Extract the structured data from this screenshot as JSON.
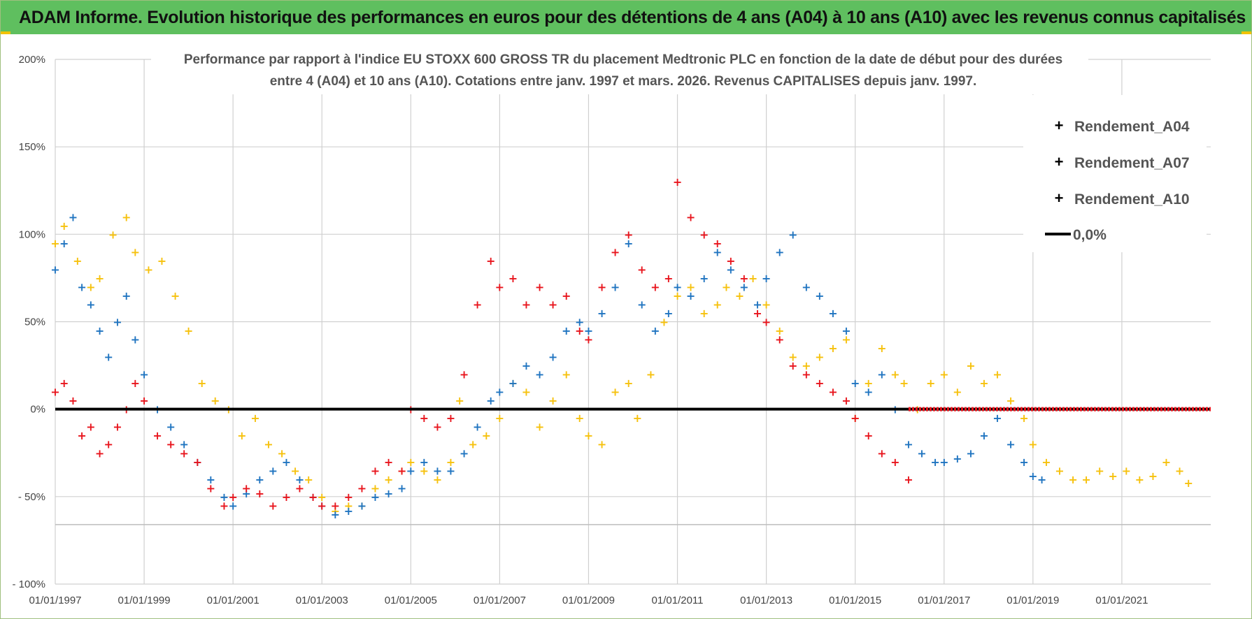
{
  "banner": {
    "title": "ADAM Informe. Evolution historique des performances en euros pour des détentions de 4 ans (A04) à 10 ans (A10) avec les revenus connus capitalisés"
  },
  "colors": {
    "a04": "#f6c10d",
    "a07": "#1f74c0",
    "a10": "#e8141c",
    "zero": "#000000",
    "grid": "#d0d0d0",
    "banner": "#5fbf5f"
  },
  "chart_data": {
    "type": "scatter",
    "title_lines": [
      "Performance par rapport à l'indice EU STOXX 600 GROSS TR  du placement Medtronic PLC en fonction de la date de début pour des durées",
      "entre 4 (A04) et 10 ans (A10). Cotations entre janv. 1997 et mars. 2026. Revenus CAPITALISES depuis janv. 1997."
    ],
    "xlabel": "",
    "ylabel": "",
    "xlim": [
      1997.0,
      2023.0
    ],
    "ylim": [
      -100,
      200
    ],
    "y_ticks": [
      200,
      150,
      100,
      50,
      0,
      -50,
      -100
    ],
    "y_tick_labels": [
      "200%",
      "150%",
      "100%",
      "50%",
      "0%",
      "- 50%",
      "- 100%"
    ],
    "x_ticks": [
      1997,
      1999,
      2001,
      2003,
      2005,
      2007,
      2009,
      2011,
      2013,
      2015,
      2017,
      2019,
      2021
    ],
    "x_tick_labels": [
      "01/01/1997",
      "01/01/1999",
      "01/01/2001",
      "01/01/2003",
      "01/01/2005",
      "01/01/2007",
      "01/01/2009",
      "01/01/2011",
      "01/01/2013",
      "01/01/2015",
      "01/01/2017",
      "01/01/2019",
      "01/01/2021"
    ],
    "legend_position": "top-right",
    "legend": [
      "Rendement_A04",
      "Rendement_A07",
      "Rendement_A10",
      "0,0%"
    ],
    "series": [
      {
        "name": "Rendement_A04",
        "color_key": "a04",
        "x": [
          1997.0,
          1997.2,
          1997.5,
          1997.8,
          1998.0,
          1998.3,
          1998.6,
          1998.8,
          1999.1,
          1999.4,
          1999.7,
          2000.0,
          2000.3,
          2000.6,
          2000.9,
          2001.2,
          2001.5,
          2001.8,
          2002.1,
          2002.4,
          2002.7,
          2003.0,
          2003.3,
          2003.6,
          2003.9,
          2004.2,
          2004.5,
          2004.8,
          2005.0,
          2005.3,
          2005.6,
          2005.9,
          2006.1,
          2006.4,
          2006.7,
          2007.0,
          2007.3,
          2007.6,
          2007.9,
          2008.2,
          2008.5,
          2008.8,
          2009.0,
          2009.3,
          2009.6,
          2009.9,
          2010.1,
          2010.4,
          2010.7,
          2011.0,
          2011.3,
          2011.6,
          2011.9,
          2012.1,
          2012.4,
          2012.7,
          2013.0,
          2013.3,
          2013.6,
          2013.9,
          2014.2,
          2014.5,
          2014.8,
          2015.0,
          2015.3,
          2015.6,
          2015.9,
          2016.1,
          2016.4,
          2016.7,
          2017.0,
          2017.3,
          2017.6,
          2017.9,
          2018.2,
          2018.5,
          2018.8,
          2019.0,
          2019.3,
          2019.6,
          2019.9,
          2020.2,
          2020.5,
          2020.8,
          2021.1,
          2021.4,
          2021.7,
          2022.0,
          2022.3,
          2022.5
        ],
        "y": [
          95,
          105,
          85,
          70,
          75,
          100,
          110,
          90,
          80,
          85,
          65,
          45,
          15,
          5,
          0,
          -15,
          -5,
          -20,
          -25,
          -35,
          -40,
          -50,
          -58,
          -55,
          -55,
          -45,
          -40,
          -35,
          -30,
          -35,
          -40,
          -30,
          5,
          -20,
          -15,
          -5,
          15,
          10,
          -10,
          5,
          20,
          -5,
          -15,
          -20,
          10,
          15,
          -5,
          20,
          50,
          65,
          70,
          55,
          60,
          70,
          65,
          75,
          60,
          45,
          30,
          25,
          30,
          35,
          40,
          -5,
          15,
          35,
          20,
          15,
          0,
          15,
          20,
          10,
          25,
          15,
          20,
          5,
          -5,
          -20,
          -30,
          -35,
          -40,
          -40,
          -35,
          -38,
          -35,
          -40,
          -38,
          -30,
          -35,
          -42
        ]
      },
      {
        "name": "Rendement_A07",
        "color_key": "a07",
        "x": [
          1997.0,
          1997.2,
          1997.4,
          1997.6,
          1997.8,
          1998.0,
          1998.2,
          1998.4,
          1998.6,
          1998.8,
          1999.0,
          1999.3,
          1999.6,
          1999.9,
          2000.2,
          2000.5,
          2000.8,
          2001.0,
          2001.3,
          2001.6,
          2001.9,
          2002.2,
          2002.5,
          2002.8,
          2003.0,
          2003.3,
          2003.6,
          2003.9,
          2004.2,
          2004.5,
          2004.8,
          2005.0,
          2005.3,
          2005.6,
          2005.9,
          2006.2,
          2006.5,
          2006.8,
          2007.0,
          2007.3,
          2007.6,
          2007.9,
          2008.2,
          2008.5,
          2008.8,
          2009.0,
          2009.3,
          2009.6,
          2009.9,
          2010.2,
          2010.5,
          2010.8,
          2011.0,
          2011.3,
          2011.6,
          2011.9,
          2012.2,
          2012.5,
          2012.8,
          2013.0,
          2013.3,
          2013.6,
          2013.9,
          2014.2,
          2014.5,
          2014.8,
          2015.0,
          2015.3,
          2015.6,
          2015.9,
          2016.2,
          2016.5,
          2016.8,
          2017.0,
          2017.3,
          2017.6,
          2017.9,
          2018.2,
          2018.5,
          2018.8,
          2019.0,
          2019.2
        ],
        "y": [
          80,
          95,
          110,
          70,
          60,
          45,
          30,
          50,
          65,
          40,
          20,
          0,
          -10,
          -20,
          -30,
          -40,
          -50,
          -55,
          -48,
          -40,
          -35,
          -30,
          -40,
          -50,
          -55,
          -60,
          -58,
          -55,
          -50,
          -48,
          -45,
          -35,
          -30,
          -35,
          -35,
          -25,
          -10,
          5,
          10,
          15,
          25,
          20,
          30,
          45,
          50,
          45,
          55,
          70,
          95,
          60,
          45,
          55,
          70,
          65,
          75,
          90,
          80,
          70,
          60,
          75,
          90,
          100,
          70,
          65,
          55,
          45,
          15,
          10,
          20,
          0,
          -20,
          -25,
          -30,
          -30,
          -28,
          -25,
          -15,
          -5,
          -20,
          -30,
          -38,
          -40
        ]
      },
      {
        "name": "Rendement_A10",
        "color_key": "a10",
        "x": [
          1997.0,
          1997.2,
          1997.4,
          1997.6,
          1997.8,
          1998.0,
          1998.2,
          1998.4,
          1998.6,
          1998.8,
          1999.0,
          1999.3,
          1999.6,
          1999.9,
          2000.2,
          2000.5,
          2000.8,
          2001.0,
          2001.3,
          2001.6,
          2001.9,
          2002.2,
          2002.5,
          2002.8,
          2003.0,
          2003.3,
          2003.6,
          2003.9,
          2004.2,
          2004.5,
          2004.8,
          2005.0,
          2005.3,
          2005.6,
          2005.9,
          2006.2,
          2006.5,
          2006.8,
          2007.0,
          2007.3,
          2007.6,
          2007.9,
          2008.2,
          2008.5,
          2008.8,
          2009.0,
          2009.3,
          2009.6,
          2009.9,
          2010.2,
          2010.5,
          2010.8,
          2011.0,
          2011.3,
          2011.6,
          2011.9,
          2012.2,
          2012.5,
          2012.8,
          2013.0,
          2013.3,
          2013.6,
          2013.9,
          2014.2,
          2014.5,
          2014.8,
          2015.0,
          2015.3,
          2015.6,
          2015.9,
          2016.2
        ],
        "y": [
          10,
          15,
          5,
          -15,
          -10,
          -25,
          -20,
          -10,
          0,
          15,
          5,
          -15,
          -20,
          -25,
          -30,
          -45,
          -55,
          -50,
          -45,
          -48,
          -55,
          -50,
          -45,
          -50,
          -55,
          -55,
          -50,
          -45,
          -35,
          -30,
          -35,
          0,
          -5,
          -10,
          -5,
          20,
          60,
          85,
          70,
          75,
          60,
          70,
          60,
          65,
          45,
          40,
          70,
          90,
          100,
          80,
          70,
          75,
          130,
          110,
          100,
          95,
          85,
          75,
          55,
          50,
          40,
          25,
          20,
          15,
          10,
          5,
          -5,
          -15,
          -25,
          -30,
          -40
        ]
      },
      {
        "name": "0,0%",
        "color_key": "zero",
        "x": [
          1997.0,
          2023.0
        ],
        "y": [
          0,
          0
        ]
      }
    ]
  }
}
